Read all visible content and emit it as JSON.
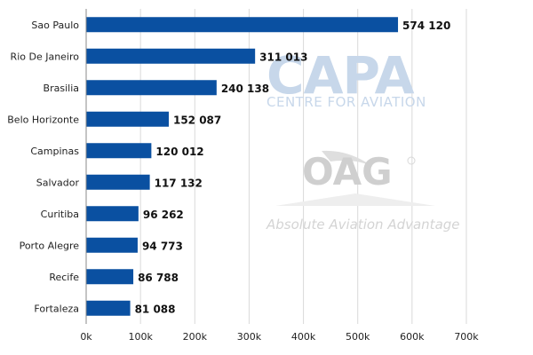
{
  "chart_data": {
    "type": "bar",
    "orientation": "horizontal",
    "categories": [
      "Sao Paulo",
      "Rio De Janeiro",
      "Brasilia",
      "Belo Horizonte",
      "Campinas",
      "Salvador",
      "Curitiba",
      "Porto Alegre",
      "Recife",
      "Fortaleza"
    ],
    "values": [
      574120,
      311013,
      240138,
      152087,
      120012,
      117132,
      96262,
      94773,
      86788,
      81088
    ],
    "value_labels": [
      "574 120",
      "311 013",
      "240 138",
      "152 087",
      "120 012",
      "117 132",
      "96 262",
      "94 773",
      "86 788",
      "81 088"
    ],
    "x_ticks": [
      "0k",
      "100k",
      "200k",
      "300k",
      "400k",
      "500k",
      "600k",
      "700k"
    ],
    "xlim": [
      0,
      700000
    ],
    "bar_color": "#0a50a1",
    "grid": true,
    "title": "",
    "xlabel": "",
    "ylabel": ""
  },
  "watermarks": {
    "capa": {
      "main": "CAPA",
      "sub": "CENTRE FOR AVIATION",
      "color": "#c7d7ea"
    },
    "oag": {
      "main": "OAG",
      "sub": "Absolute Aviation Advantage",
      "color": "#cfcfcf"
    }
  }
}
